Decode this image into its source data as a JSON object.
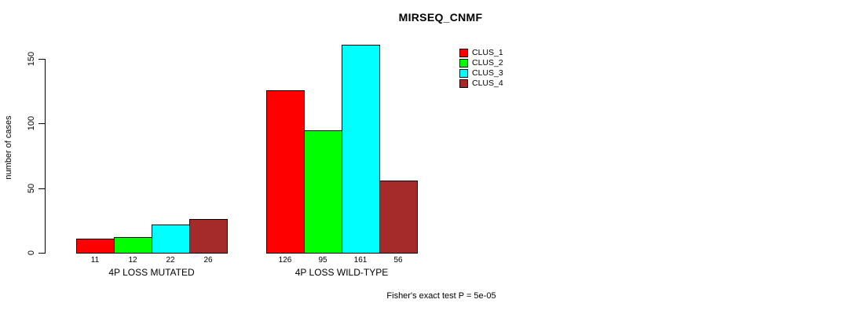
{
  "chart_data": {
    "type": "bar",
    "title": "MIRSEQ_CNMF",
    "ylabel": "number of cases",
    "xlabel": "",
    "ylim": [
      0,
      150
    ],
    "yticks": [
      0,
      50,
      100,
      150
    ],
    "grid": false,
    "legend_position": "top-right",
    "bar_value_labels_shown": true,
    "categories": [
      "4P LOSS MUTATED",
      "4P LOSS WILD-TYPE"
    ],
    "series": [
      {
        "name": "CLUS_1",
        "color": "#FF0000",
        "values": [
          11,
          126
        ]
      },
      {
        "name": "CLUS_2",
        "color": "#00FF00",
        "values": [
          12,
          95
        ]
      },
      {
        "name": "CLUS_3",
        "color": "#00FFFF",
        "values": [
          22,
          161
        ]
      },
      {
        "name": "CLUS_4",
        "color": "#A52A2A",
        "values": [
          26,
          56
        ]
      }
    ],
    "annotation": "Fisher's exact test P = 5e-05",
    "axis_color": "#000000",
    "background_color": "#FFFFFF"
  }
}
